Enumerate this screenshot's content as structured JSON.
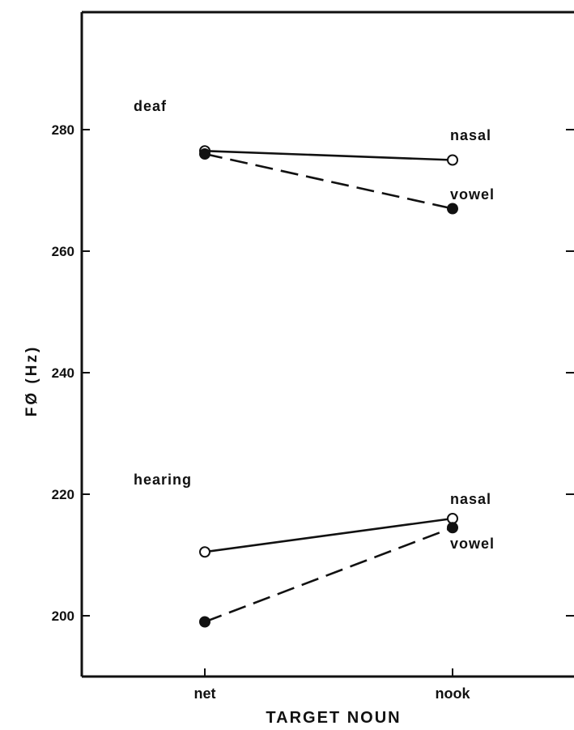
{
  "chart_data": {
    "type": "line",
    "xlabel": "TARGET NOUN",
    "ylabel": "FØ (Hz)",
    "categories": [
      "net",
      "nook"
    ],
    "ylim": [
      190,
      300
    ],
    "yticks": [
      200,
      220,
      240,
      260,
      280
    ],
    "grid": false,
    "groups": [
      {
        "name": "deaf",
        "series": [
          {
            "name": "nasal",
            "marker": "open",
            "line": "solid",
            "values": [
              276.5,
              275
            ]
          },
          {
            "name": "vowel",
            "marker": "filled",
            "line": "dashed",
            "values": [
              276,
              267
            ]
          }
        ]
      },
      {
        "name": "hearing",
        "series": [
          {
            "name": "nasal",
            "marker": "open",
            "line": "solid",
            "values": [
              210.5,
              216
            ]
          },
          {
            "name": "vowel",
            "marker": "filled",
            "line": "dashed",
            "values": [
              199,
              214.5
            ]
          }
        ]
      }
    ]
  }
}
